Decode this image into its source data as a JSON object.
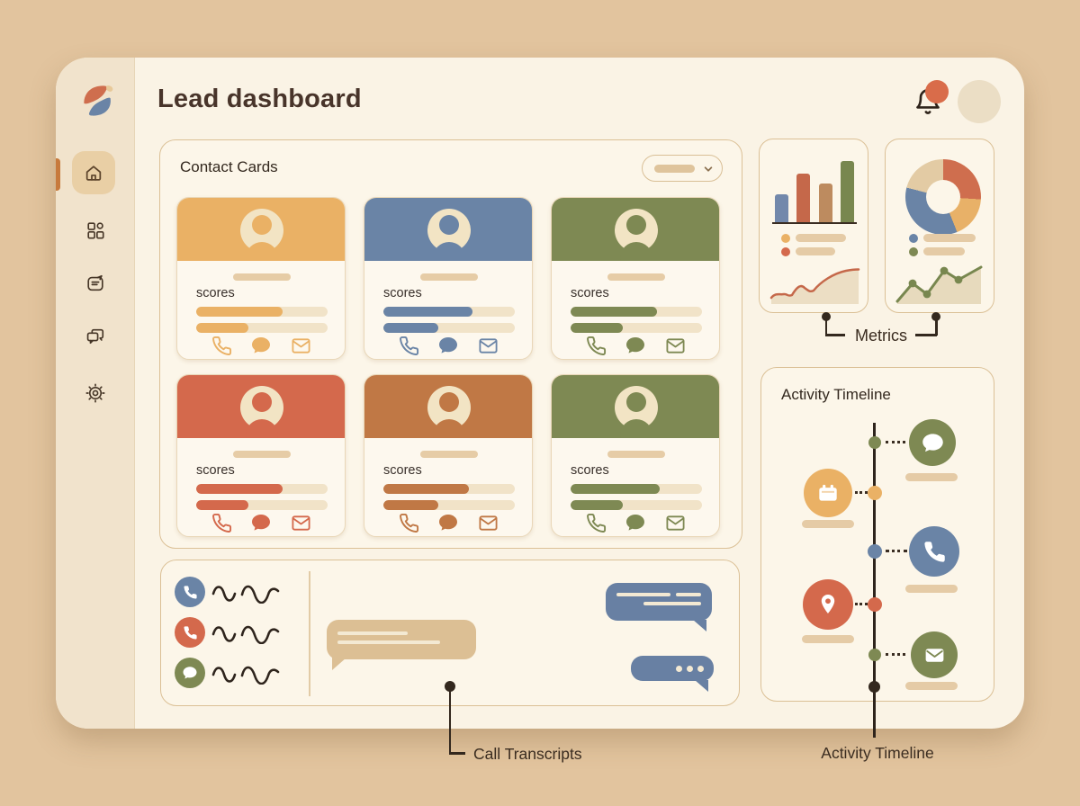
{
  "app": {
    "title": "Lead dashboard"
  },
  "colors": {
    "page_bg": "#e2c49e",
    "window_bg": "#faf3e5",
    "sidebar_bg": "#f1e3cc",
    "panel_bg": "#fcf6e9",
    "ink": "#33281e",
    "active_accent": "#c7793c",
    "notification_dot": "#d96c4a",
    "yellow": "#EAB165",
    "blue": "#6A84A6",
    "olive": "#7E8953",
    "red": "#D4694C",
    "rust": "#C07845",
    "cream": "#f2e4c4"
  },
  "sidebar": {
    "logo": "brand-logo",
    "items": [
      {
        "name": "home",
        "icon": "home-icon",
        "active": true
      },
      {
        "name": "dashboard",
        "icon": "dashboard-grid-icon",
        "active": false
      },
      {
        "name": "notes",
        "icon": "notes-icon",
        "active": false
      },
      {
        "name": "messages",
        "icon": "messages-icon",
        "active": false
      },
      {
        "name": "settings",
        "icon": "settings-gear-icon",
        "active": false
      }
    ]
  },
  "topbar": {
    "notifications_icon": "bell-icon",
    "has_unread": true,
    "avatar": "user-avatar"
  },
  "contact_cards": {
    "title": "Contact Cards",
    "dropdown": {
      "icon": "chevron-down-icon",
      "selected_value": ""
    },
    "card_action_icons": [
      "phone-icon",
      "chat-icon",
      "mail-icon"
    ],
    "cards": [
      {
        "theme": "#EAB165",
        "scores_label": "scores",
        "score1_pct": 66,
        "score2_pct": 40
      },
      {
        "theme": "#6A84A6",
        "scores_label": "scores",
        "score1_pct": 68,
        "score2_pct": 42
      },
      {
        "theme": "#7E8953",
        "scores_label": "scores",
        "score1_pct": 66,
        "score2_pct": 40
      },
      {
        "theme": "#D4694C",
        "scores_label": "scores",
        "score1_pct": 66,
        "score2_pct": 40
      },
      {
        "theme": "#C07845",
        "scores_label": "scores",
        "score1_pct": 65,
        "score2_pct": 42
      },
      {
        "theme": "#7E8953",
        "scores_label": "scores",
        "score1_pct": 68,
        "score2_pct": 40
      }
    ]
  },
  "metrics": {
    "label": "Metrics",
    "chart_data": [
      {
        "type": "bar",
        "values": [
          31,
          54,
          43,
          68
        ],
        "colors": [
          "#7288AB",
          "#C5684A",
          "#BD8B5F",
          "#78874F"
        ]
      },
      {
        "type": "donut",
        "segments": [
          {
            "color": "#CF6E4E",
            "pct": 26
          },
          {
            "color": "#E8B168",
            "pct": 18
          },
          {
            "color": "#6A84A6",
            "pct": 35
          },
          {
            "color": "#E3CBA4",
            "pct": 21
          }
        ]
      },
      {
        "type": "line",
        "color": "#C5684A",
        "trend": "rising"
      },
      {
        "type": "line",
        "color": "#78874F",
        "trend": "rising-zigzag"
      }
    ],
    "legend_left": [
      {
        "dot": "#EAB165"
      },
      {
        "dot": "#D4694C"
      }
    ],
    "legend_right": [
      {
        "dot": "#6A84A6"
      },
      {
        "dot": "#7E8953"
      }
    ]
  },
  "activity_timeline": {
    "title": "Activity Timeline",
    "caption": "Activity Timeline",
    "events": [
      {
        "icon": "chat-bubble-icon",
        "color": "#7E8953",
        "side": "right"
      },
      {
        "icon": "calendar-icon",
        "color": "#EAB165",
        "side": "left"
      },
      {
        "icon": "phone-icon",
        "color": "#6A84A6",
        "side": "right"
      },
      {
        "icon": "location-pin-icon",
        "color": "#D4694C",
        "side": "left"
      },
      {
        "icon": "mail-icon",
        "color": "#7E8953",
        "side": "right"
      }
    ]
  },
  "call_transcripts": {
    "caption": "Call Transcripts",
    "rows": [
      {
        "icon": "phone-icon",
        "color": "#6A84A6"
      },
      {
        "icon": "phone-icon",
        "color": "#D4694C"
      },
      {
        "icon": "chat-bubble-icon",
        "color": "#7E8953"
      }
    ]
  }
}
